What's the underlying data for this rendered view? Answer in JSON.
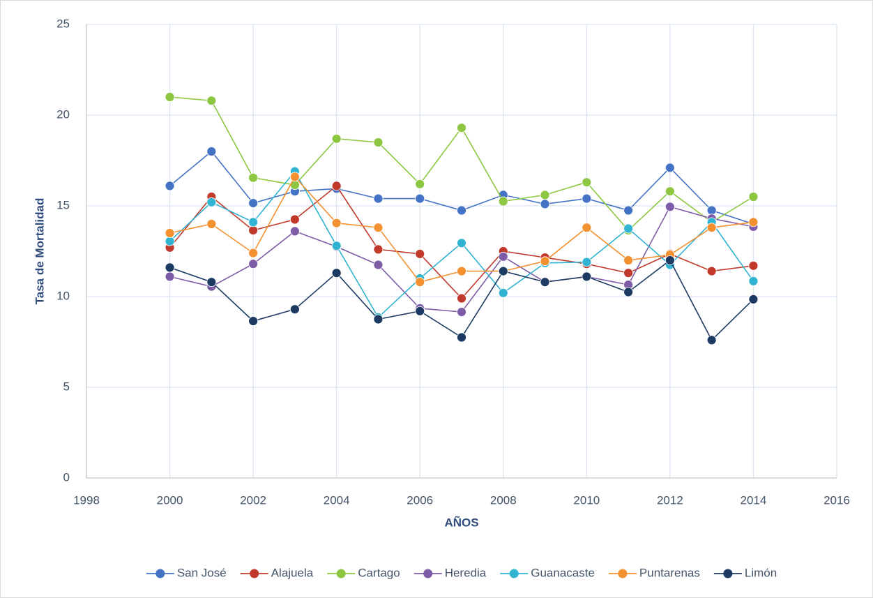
{
  "chart_data": {
    "type": "line",
    "x_label": "AÑOS",
    "y_label": "Tasa de Mortalidad",
    "x": [
      2000,
      2001,
      2002,
      2003,
      2004,
      2005,
      2006,
      2007,
      2008,
      2009,
      2010,
      2011,
      2012,
      2013,
      2014
    ],
    "xlim": [
      1998,
      2016
    ],
    "xticks": [
      1998,
      2000,
      2002,
      2004,
      2006,
      2008,
      2010,
      2012,
      2014,
      2016
    ],
    "ylim": [
      0,
      25
    ],
    "yticks": [
      0,
      5,
      10,
      15,
      20,
      25
    ],
    "grid": true,
    "legend": "bottom",
    "series": [
      {
        "name": "San José",
        "color": "#4472c4",
        "values": [
          16.1,
          18.0,
          15.15,
          15.8,
          15.95,
          15.4,
          15.4,
          14.75,
          15.6,
          15.1,
          15.4,
          14.75,
          17.1,
          14.75,
          14.0
        ]
      },
      {
        "name": "Alajuela",
        "color": "#c0392b",
        "values": [
          12.7,
          15.5,
          13.65,
          14.25,
          16.1,
          12.6,
          12.35,
          9.9,
          12.5,
          12.15,
          11.8,
          11.3,
          12.35,
          11.4,
          11.7
        ]
      },
      {
        "name": "Cartago",
        "color": "#8dc641",
        "values": [
          21.0,
          20.8,
          16.55,
          16.15,
          18.7,
          18.5,
          16.2,
          19.3,
          15.25,
          15.6,
          16.3,
          13.65,
          15.8,
          14.1,
          15.5
        ]
      },
      {
        "name": "Heredia",
        "color": "#7d5ba6",
        "values": [
          11.1,
          10.55,
          11.8,
          13.6,
          12.75,
          11.75,
          9.35,
          9.15,
          12.2,
          10.8,
          11.1,
          10.65,
          14.95,
          14.3,
          13.85
        ]
      },
      {
        "name": "Guanacaste",
        "color": "#31b3d2",
        "values": [
          13.05,
          15.2,
          14.1,
          16.9,
          12.8,
          8.85,
          11.0,
          12.95,
          10.2,
          11.85,
          11.9,
          13.75,
          11.75,
          14.1,
          10.85
        ]
      },
      {
        "name": "Puntarenas",
        "color": "#f39131",
        "values": [
          13.5,
          14.0,
          12.4,
          16.6,
          14.05,
          13.8,
          10.8,
          11.4,
          11.4,
          11.95,
          13.8,
          12.0,
          12.3,
          13.8,
          14.1
        ]
      },
      {
        "name": "Limón",
        "color": "#1d3a63",
        "values": [
          11.6,
          10.8,
          8.65,
          9.3,
          11.3,
          8.75,
          9.2,
          7.75,
          11.4,
          10.8,
          11.1,
          10.25,
          12.0,
          7.6,
          9.85
        ]
      }
    ]
  }
}
